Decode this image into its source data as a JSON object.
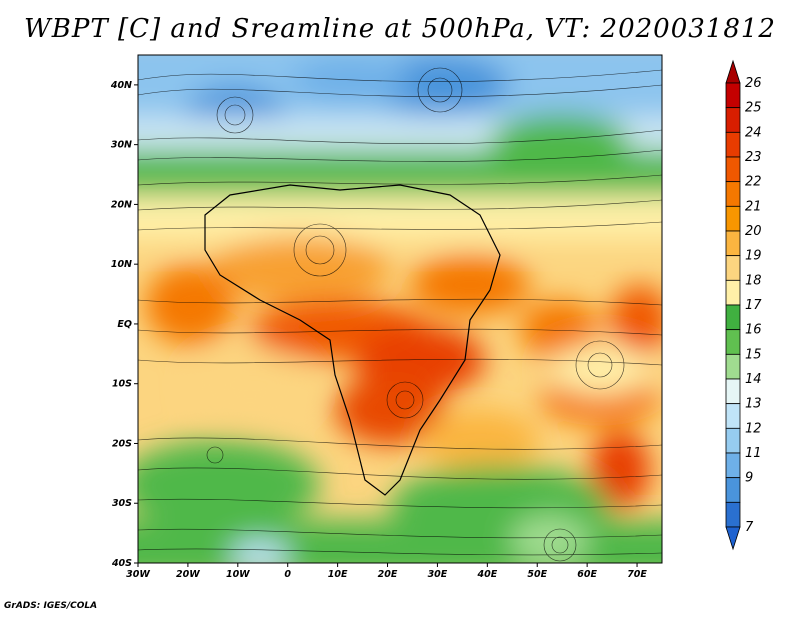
{
  "title": "WBPT [C] and Sreamline at 500hPa, VT: 2020031812",
  "credit": "GrADS: IGES/COLA",
  "map": {
    "lon_ticks": [
      "30W",
      "20W",
      "10W",
      "0",
      "10E",
      "20E",
      "30E",
      "40E",
      "50E",
      "60E",
      "70E"
    ],
    "lat_ticks": [
      "40N",
      "30N",
      "20N",
      "10N",
      "EQ",
      "10S",
      "20S",
      "30S",
      "40S"
    ]
  },
  "colorbar": {
    "labels": [
      "26",
      "25",
      "24",
      "23",
      "22",
      "21",
      "20",
      "19",
      "18",
      "17",
      "16",
      "15",
      "14",
      "13",
      "12",
      "11",
      "9",
      "7"
    ],
    "colors": [
      "#c40000",
      "#d81e00",
      "#e83c00",
      "#f05800",
      "#f57800",
      "#f89600",
      "#fbb540",
      "#fcd580",
      "#fff0a8",
      "#40b040",
      "#60c050",
      "#a0dc90",
      "#e6f6f6",
      "#c0e4f8",
      "#96ccf0",
      "#6eb0e8",
      "#4a94dc",
      "#2a70d0"
    ]
  }
}
